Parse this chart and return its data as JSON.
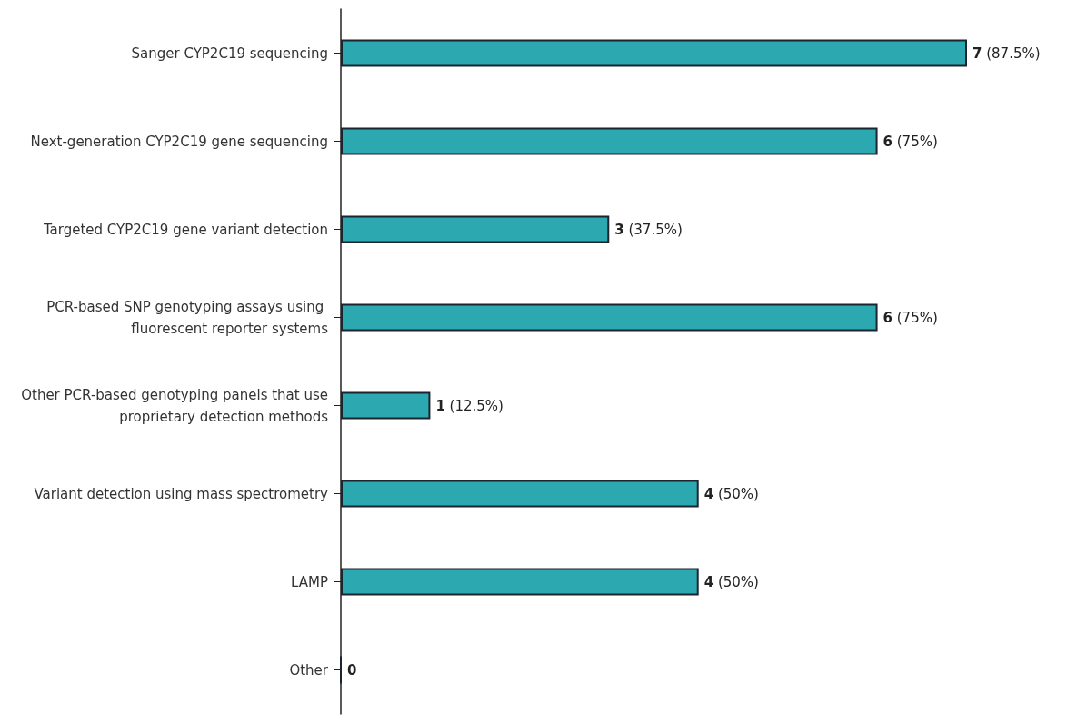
{
  "chart_data": {
    "type": "bar",
    "orientation": "horizontal",
    "categories": [
      "Sanger CYP2C19 sequencing",
      "Next-generation CYP2C19 gene sequencing",
      "Targeted CYP2C19 gene variant detection",
      "PCR-based SNP genotyping assays using fluorescent reporter systems",
      "Other PCR-based genotyping panels that use proprietary detection methods",
      "Variant detection using mass spectrometry",
      "LAMP",
      "Other"
    ],
    "values": [
      7,
      6,
      3,
      6,
      1,
      4,
      4,
      0
    ],
    "value_labels": [
      "7 (87.5%)",
      "6 (75%)",
      "3 (37.5%)",
      "6 (75%)",
      "1 (12.5%)",
      "4 (50%)",
      "4 (50%)",
      "0"
    ],
    "colors": [
      "#2ba8b0",
      "#2ba8b0",
      "#2ba8b0",
      "#2ba8b0",
      "#2ba8b0",
      "#2ba8b0",
      "#2ba8b0",
      "#1c2430"
    ]
  }
}
